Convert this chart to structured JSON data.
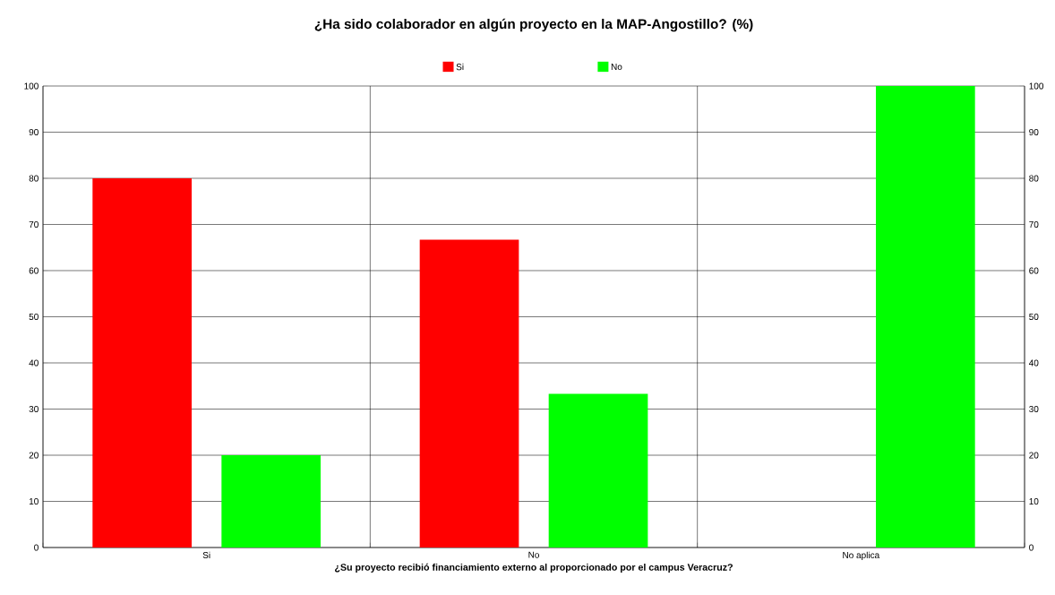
{
  "chart_data": {
    "type": "bar",
    "title": "¿Ha sido colaborador en algún proyecto en la MAP-Angostillo? (%)",
    "xlabel": "¿Su proyecto recibió financiamiento externo al proporcionado por el campus Veracruz?",
    "categories": [
      "Si",
      "No",
      "No aplica"
    ],
    "series": [
      {
        "name": "Si",
        "color": "#ff0000",
        "values": [
          80,
          66.7,
          0
        ]
      },
      {
        "name": "No",
        "color": "#00ff00",
        "values": [
          20,
          33.3,
          100
        ]
      }
    ],
    "ylim": [
      0,
      100
    ],
    "yticks": [
      0,
      10,
      20,
      30,
      40,
      50,
      60,
      70,
      80,
      90,
      100
    ],
    "y2lim": [
      0,
      100
    ],
    "y2ticks": [
      0,
      10,
      20,
      30,
      40,
      50,
      60,
      70,
      80,
      90,
      100
    ],
    "grid": true,
    "legend": "top"
  }
}
